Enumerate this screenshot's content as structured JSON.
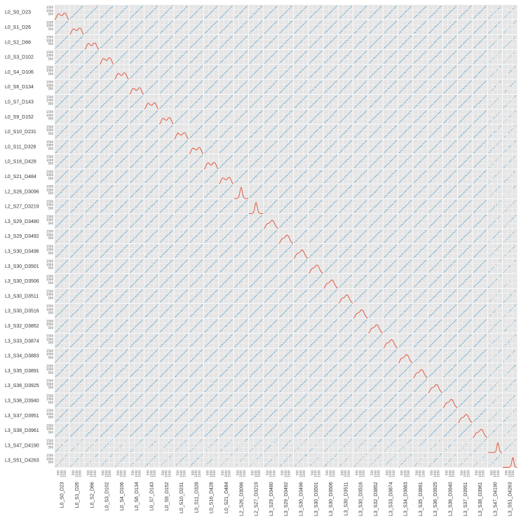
{
  "chart_data": {
    "type": "scatter",
    "title": "",
    "variables": [
      "L0_S0_D23",
      "L0_S1_D26",
      "L0_S2_D66",
      "L0_S3_D102",
      "L0_S4_D106",
      "L0_S6_D134",
      "L0_S7_D143",
      "L0_S9_D152",
      "L0_S10_D231",
      "L0_S11_D328",
      "L0_S16_D428",
      "L0_S21_D484",
      "L2_S26_D3096",
      "L2_S27_D3219",
      "L3_S29_D3480",
      "L3_S29_D3492",
      "L3_S30_D3496",
      "L3_S30_D3501",
      "L3_S30_D3506",
      "L3_S30_D3511",
      "L3_S30_D3516",
      "L3_S32_D3852",
      "L3_S33_D3874",
      "L3_S34_D3883",
      "L3_S35_D3891",
      "L3_S36_D3925",
      "L3_S36_D3940",
      "L3_S37_D3951",
      "L3_S38_D3961",
      "L3_S47_D4190",
      "L3_S51_D4263"
    ],
    "diag_ticks": [
      "500",
      "1000",
      "1500"
    ],
    "value_range": [
      0,
      1700
    ],
    "diagonal": "kde",
    "offdiagonal": "scatter",
    "colors": {
      "scatter": "#4c9ac9",
      "kde": "#e24a33",
      "panel_bg": "#e5e5e5",
      "grid": "#ffffff",
      "label": "#333333"
    },
    "grid": true
  }
}
